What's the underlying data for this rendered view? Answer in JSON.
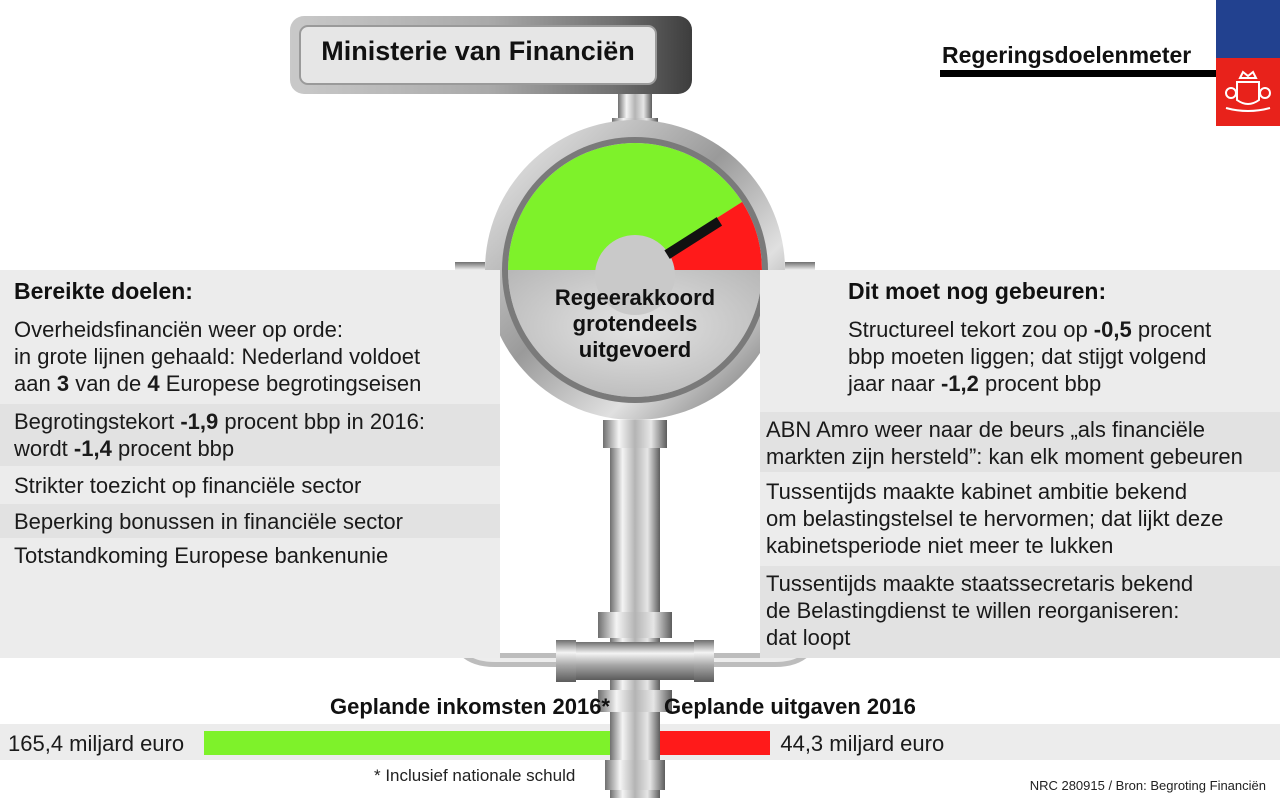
{
  "header": {
    "ministry": "Ministerie van Financiën",
    "meter_title": "Regeringsdoelenmeter"
  },
  "gauge": {
    "lines": [
      "Regeerakkoord",
      "grotendeels",
      "uitgevoerd"
    ],
    "level_fraction": 0.82,
    "colors": {
      "achieved": "#7ef22a",
      "remaining": "#ff1a1a"
    }
  },
  "left": {
    "heading": "Bereikte doelen:",
    "items": [
      {
        "lines": [
          [
            "Overheidsfinanciën weer op orde:"
          ],
          [
            "in grote lijnen gehaald: Nederland voldoet"
          ],
          [
            "aan ",
            {
              "b": "3"
            },
            " van de ",
            {
              "b": "4"
            },
            " Europese begrotingseisen"
          ]
        ]
      },
      {
        "lines": [
          [
            "Begrotingstekort ",
            {
              "b": "-1,9"
            },
            " procent bbp in 2016:"
          ],
          [
            "wordt ",
            {
              "b": "-1,4"
            },
            " procent bbp"
          ]
        ]
      },
      {
        "lines": [
          [
            "Strikter toezicht op financiële sector"
          ]
        ]
      },
      {
        "lines": [
          [
            "Beperking bonussen in financiële sector"
          ]
        ]
      },
      {
        "lines": [
          [
            "Totstandkoming Europese bankenunie"
          ]
        ]
      }
    ]
  },
  "right": {
    "heading": "Dit moet nog gebeuren:",
    "items": [
      {
        "lines": [
          [
            "Structureel tekort zou op ",
            {
              "b": "-0,5"
            },
            " procent"
          ],
          [
            "bbp moeten liggen; dat stijgt volgend"
          ],
          [
            "jaar naar ",
            {
              "b": "-1,2"
            },
            " procent bbp"
          ]
        ]
      },
      {
        "lines": [
          [
            "ABN Amro weer naar de beurs „als financiële"
          ],
          [
            "markten zijn hersteld”: kan elk moment gebeuren"
          ]
        ]
      },
      {
        "lines": [
          [
            "Tussentijds maakte kabinet ambitie bekend"
          ],
          [
            "om belastingstelsel te hervormen; dat lijkt deze"
          ],
          [
            "kabinetsperiode niet meer te lukken"
          ]
        ]
      },
      {
        "lines": [
          [
            "Tussentijds maakte staatssecretaris bekend"
          ],
          [
            "de Belastingdienst te willen reorganiseren:"
          ],
          [
            "dat loopt"
          ]
        ]
      }
    ]
  },
  "budget": {
    "income": {
      "label": "Geplande inkomsten 2016*",
      "amount": "165,4 miljard euro",
      "value": 165.4,
      "color": "#7ef22a"
    },
    "expenses": {
      "label": "Geplande uitgaven 2016",
      "amount": "44,3 miljard euro",
      "value": 44.3,
      "color": "#ff1a1a"
    },
    "footnote": "* Inclusief nationale schuld"
  },
  "source": "NRC 280915 / Bron: Begroting Financiën"
}
